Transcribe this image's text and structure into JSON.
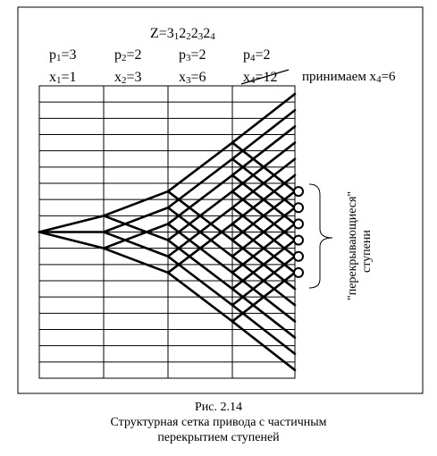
{
  "formula": {
    "base": "Z=3",
    "sub1": "1",
    "mid1": "2",
    "sub2": "2",
    "mid2": "2",
    "sub3": "3",
    "mid3": "2",
    "sub4": "4"
  },
  "groups": [
    {
      "p_label": "p",
      "p_index": "1",
      "p_value": "=3",
      "x_label": "x",
      "x_index": "1",
      "x_value": "=1"
    },
    {
      "p_label": "p",
      "p_index": "2",
      "p_value": "=2",
      "x_label": "x",
      "x_index": "2",
      "x_value": "=3"
    },
    {
      "p_label": "p",
      "p_index": "3",
      "p_value": "=2",
      "x_label": "x",
      "x_index": "3",
      "x_value": "=6"
    },
    {
      "p_label": "p",
      "p_index": "4",
      "p_value": "=2",
      "x_label": "x",
      "x_index": "4",
      "x_value": "=12"
    }
  ],
  "accept_note": {
    "prefix": "принимаем x",
    "index": "4",
    "value": "=6"
  },
  "side_label": {
    "line1": "\"перекрывающиеся\"",
    "line2": "ступени"
  },
  "caption": {
    "number": "Рис. 2.14",
    "line1": "Структурная сетка привода с частичным",
    "line2": "перекрытием ступеней"
  }
}
